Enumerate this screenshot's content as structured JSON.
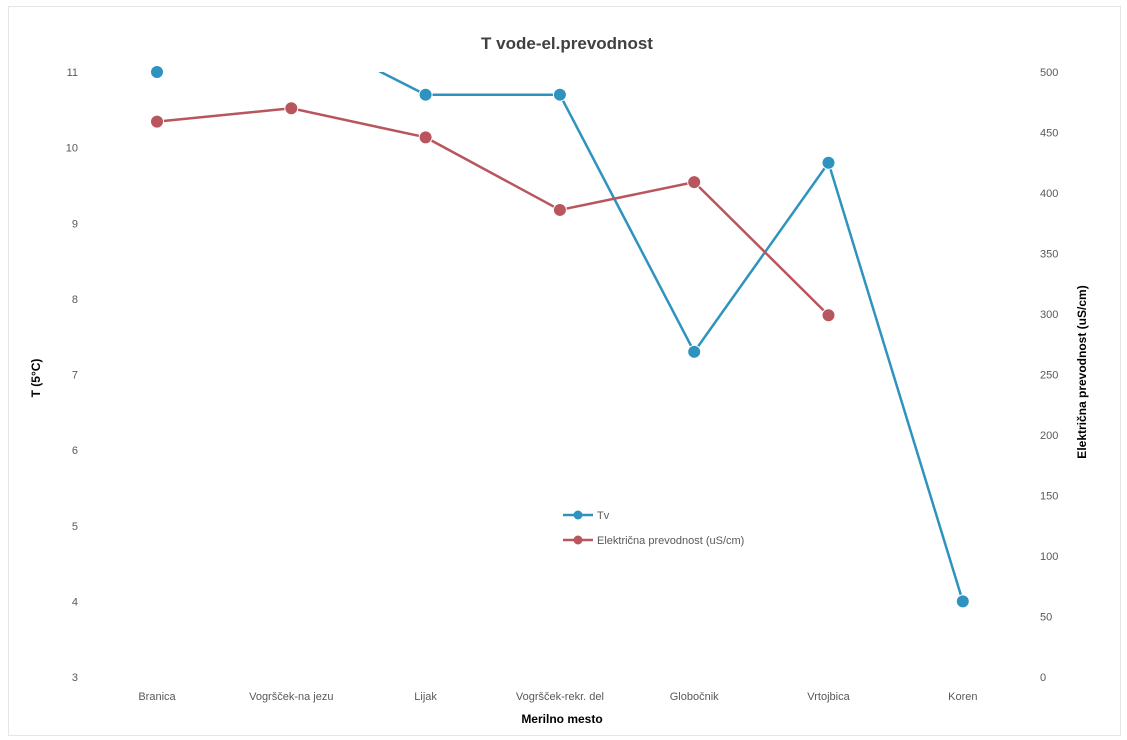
{
  "chart_data": {
    "type": "line",
    "title": "T vode-el.prevodnost",
    "xlabel": "Merilno mesto",
    "ylabel": "T (5°C)",
    "y2label": "Električna prevodnost (uS/cm)",
    "categories": [
      "Branica",
      "Vogršček-na jezu",
      "Lijak",
      "Vogršček-rekr. del",
      "Globočnik",
      "Vrtojbica",
      "Koren"
    ],
    "ylim": [
      3,
      11
    ],
    "y2lim": [
      0,
      500
    ],
    "yticks": [
      "11",
      "10",
      "9",
      "8",
      "7",
      "6",
      "5",
      "4",
      "3"
    ],
    "y2ticks": [
      "500",
      "450",
      "400",
      "350",
      "300",
      "250",
      "200",
      "150",
      "100",
      "50",
      "0"
    ],
    "series": [
      {
        "name": "Tv",
        "axis": "left",
        "color": "#2e93be",
        "values": [
          11.0,
          11.6,
          10.7,
          10.7,
          7.3,
          9.8,
          4.0
        ]
      },
      {
        "name": "Električna prevodnost (uS/cm)",
        "axis": "right",
        "color": "#b9555d",
        "values": [
          459,
          470,
          446,
          386,
          409,
          299,
          null
        ]
      }
    ],
    "grid": false,
    "legend_position": "center"
  }
}
